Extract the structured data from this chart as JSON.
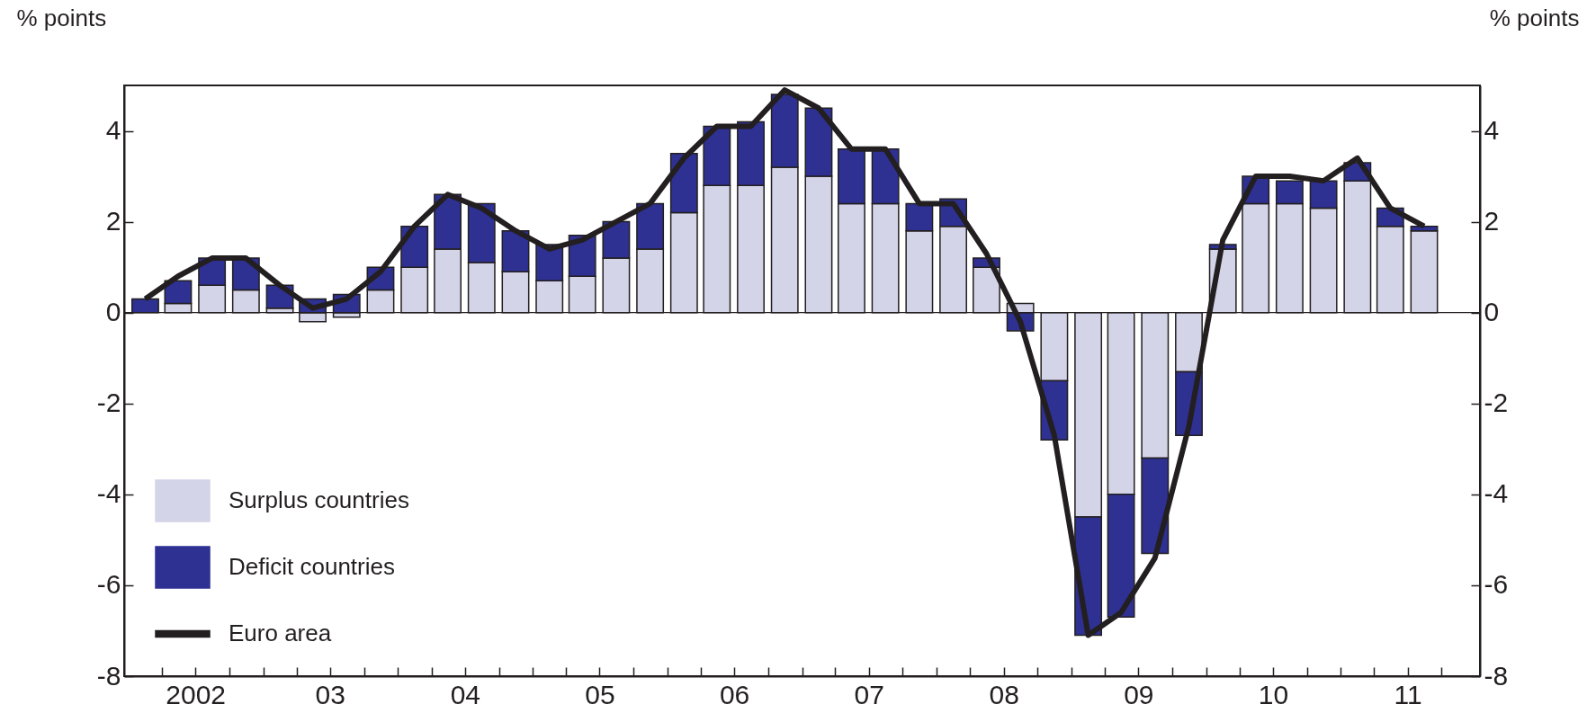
{
  "chart_data": {
    "type": "bar",
    "stacked": true,
    "ylabel": "% points",
    "y2label": "% points",
    "x": [
      "2002-02-15",
      "2002-05-15",
      "2002-08-15",
      "2002-11-15",
      "2003-02-15",
      "2003-05-15",
      "2003-08-15",
      "2003-11-15",
      "2004-02-15",
      "2004-05-15",
      "2004-08-15",
      "2004-11-15",
      "2005-02-15",
      "2005-05-15",
      "2005-08-15",
      "2005-11-15",
      "2006-02-15",
      "2006-05-15",
      "2006-08-15",
      "2006-11-15",
      "2007-02-15",
      "2007-05-15",
      "2007-08-15",
      "2007-11-15",
      "2008-02-15",
      "2008-05-15",
      "2008-08-15",
      "2008-11-15",
      "2009-02-15",
      "2009-05-15",
      "2009-08-15",
      "2009-11-15",
      "2010-02-15",
      "2010-05-15",
      "2010-08-15",
      "2010-11-15",
      "2011-02-15",
      "2011-05-15",
      "2011-08-15"
    ],
    "series": [
      {
        "name": "Surplus countries",
        "color": "#d4d4e8",
        "values": [
          null,
          0.2,
          0.6,
          0.5,
          0.1,
          -0.2,
          -0.1,
          0.5,
          1.0,
          1.4,
          1.1,
          0.9,
          0.7,
          0.8,
          1.2,
          1.4,
          2.2,
          2.8,
          2.8,
          3.2,
          3.0,
          2.4,
          2.4,
          1.8,
          1.9,
          1.0,
          0.2,
          -1.5,
          -4.5,
          -4.0,
          -3.2,
          -1.3,
          1.4,
          2.4,
          2.4,
          2.3,
          2.9,
          1.9,
          1.8
        ]
      },
      {
        "name": "Deficit countries",
        "color": "#2e3192",
        "values": [
          0.3,
          0.5,
          0.6,
          0.7,
          0.5,
          0.3,
          0.4,
          0.5,
          0.9,
          1.2,
          1.3,
          0.9,
          0.8,
          0.9,
          0.8,
          1.0,
          1.3,
          1.3,
          1.4,
          1.6,
          1.5,
          1.2,
          1.2,
          0.6,
          0.6,
          0.2,
          -0.4,
          -1.3,
          -2.6,
          -2.7,
          -2.1,
          -1.4,
          0.1,
          0.6,
          0.5,
          0.6,
          0.4,
          0.4,
          0.1
        ]
      },
      {
        "name": "Euro area",
        "type": "line",
        "color": "#231f20",
        "values": [
          0.3,
          0.8,
          1.2,
          1.2,
          0.6,
          0.1,
          0.3,
          0.9,
          1.9,
          2.6,
          2.3,
          1.8,
          1.4,
          1.6,
          2.0,
          2.4,
          3.4,
          4.1,
          4.1,
          4.9,
          4.5,
          3.6,
          3.6,
          2.4,
          2.4,
          1.3,
          -0.2,
          -2.7,
          -7.1,
          -6.6,
          -5.4,
          -2.5,
          1.6,
          3.0,
          3.0,
          2.9,
          3.4,
          2.3,
          1.9
        ]
      }
    ],
    "xlim": [
      "2002-01-01",
      "2012-01-01"
    ],
    "xticks": [
      {
        "value": "2002-04-01",
        "label": null
      },
      {
        "value": "2002-07-01",
        "label": "2002"
      },
      {
        "value": "2002-10-01",
        "label": null
      },
      {
        "value": "2003-01-01",
        "label": null
      },
      {
        "value": "2003-04-01",
        "label": null
      },
      {
        "value": "2003-07-01",
        "label": "03"
      },
      {
        "value": "2003-10-01",
        "label": null
      },
      {
        "value": "2004-01-01",
        "label": null
      },
      {
        "value": "2004-04-01",
        "label": null
      },
      {
        "value": "2004-07-01",
        "label": "04"
      },
      {
        "value": "2004-10-01",
        "label": null
      },
      {
        "value": "2005-01-01",
        "label": null
      },
      {
        "value": "2005-04-01",
        "label": null
      },
      {
        "value": "2005-07-01",
        "label": "05"
      },
      {
        "value": "2005-10-01",
        "label": null
      },
      {
        "value": "2006-01-01",
        "label": null
      },
      {
        "value": "2006-04-01",
        "label": null
      },
      {
        "value": "2006-07-01",
        "label": "06"
      },
      {
        "value": "2006-10-01",
        "label": null
      },
      {
        "value": "2007-01-01",
        "label": null
      },
      {
        "value": "2007-04-01",
        "label": null
      },
      {
        "value": "2007-07-01",
        "label": "07"
      },
      {
        "value": "2007-10-01",
        "label": null
      },
      {
        "value": "2008-01-01",
        "label": null
      },
      {
        "value": "2008-04-01",
        "label": null
      },
      {
        "value": "2008-07-01",
        "label": "08"
      },
      {
        "value": "2008-10-01",
        "label": null
      },
      {
        "value": "2009-01-01",
        "label": null
      },
      {
        "value": "2009-04-01",
        "label": null
      },
      {
        "value": "2009-07-01",
        "label": "09"
      },
      {
        "value": "2009-10-01",
        "label": null
      },
      {
        "value": "2010-01-01",
        "label": null
      },
      {
        "value": "2010-04-01",
        "label": null
      },
      {
        "value": "2010-07-01",
        "label": "10"
      },
      {
        "value": "2010-10-01",
        "label": null
      },
      {
        "value": "2011-01-01",
        "label": null
      },
      {
        "value": "2011-04-01",
        "label": null
      },
      {
        "value": "2011-07-01",
        "label": "11"
      },
      {
        "value": "2011-10-01",
        "label": null
      }
    ],
    "ylim": [
      -8,
      5
    ],
    "yticks": [
      -8,
      -6,
      -4,
      -2,
      0,
      2,
      4
    ],
    "y2lim": [
      -8,
      5
    ],
    "y2ticks": [
      -8,
      -6,
      -4,
      -2,
      0,
      2,
      4
    ],
    "ref_lines": [
      {
        "axis": "y",
        "value": 0,
        "color": "#231f20"
      }
    ],
    "grid": false,
    "legend": "bottom left"
  }
}
